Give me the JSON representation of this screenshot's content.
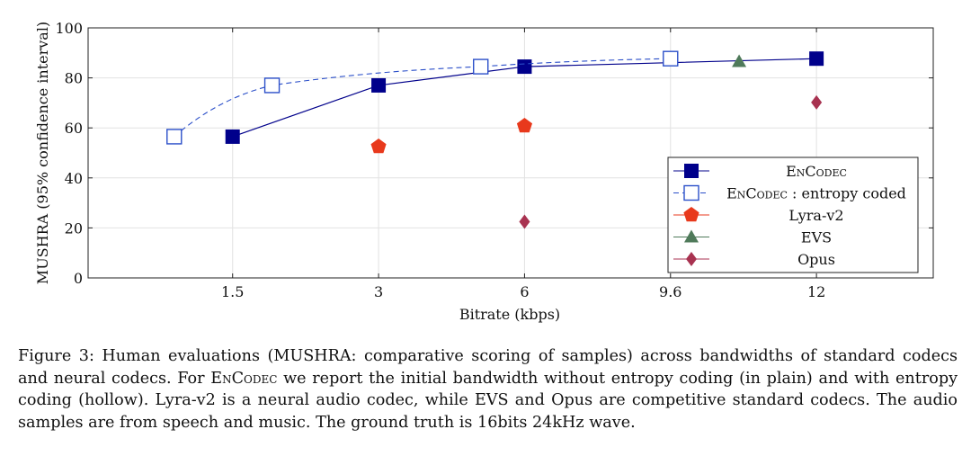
{
  "chart_data": {
    "type": "line",
    "xlabel": "Bitrate (kbps)",
    "ylabel": "MUSHRA (95% confidence interval)",
    "ylim": [
      0,
      100
    ],
    "y_ticks": [
      0,
      20,
      40,
      60,
      80,
      100
    ],
    "x_ticks": [
      {
        "pos": 1,
        "label": "1.5"
      },
      {
        "pos": 2,
        "label": "3"
      },
      {
        "pos": 3,
        "label": "6"
      },
      {
        "pos": 4,
        "label": "9.6"
      },
      {
        "pos": 5,
        "label": "12"
      }
    ],
    "xlim": [
      0.01,
      5.8
    ],
    "grid": true,
    "legend_position": "bottom-right",
    "series": [
      {
        "name": "EnCodec",
        "style": "solid-line-filled-square",
        "color": "#00008b",
        "points": [
          {
            "x": 1,
            "y": 56.5
          },
          {
            "x": 2,
            "y": 77
          },
          {
            "x": 3,
            "y": 84.5
          },
          {
            "x": 5,
            "y": 87.7
          }
        ]
      },
      {
        "name": "EnCodec : entropy coded",
        "style": "dashed-line-hollow-square",
        "color": "#2b4fc9",
        "points": [
          {
            "x": 0.6,
            "y": 56.5
          },
          {
            "x": 1.27,
            "y": 77
          },
          {
            "x": 2.7,
            "y": 84.5
          },
          {
            "x": 4.0,
            "y": 87.7
          }
        ]
      },
      {
        "name": "Lyra-v2",
        "style": "pentagon",
        "color": "#e8391c",
        "points": [
          {
            "x": 2,
            "y": 52.5
          },
          {
            "x": 3,
            "y": 60.8
          }
        ]
      },
      {
        "name": "EVS",
        "style": "triangle",
        "color": "#4f7a5a",
        "points": [
          {
            "x": 4.47,
            "y": 86.5
          }
        ]
      },
      {
        "name": "Opus",
        "style": "diamond",
        "color": "#a83250",
        "points": [
          {
            "x": 3,
            "y": 22.5
          },
          {
            "x": 5,
            "y": 70.2
          }
        ]
      }
    ]
  },
  "caption": {
    "line1": "Figure 3: Human evaluations (MUSHRA: comparative scoring of samples) across bandwidths of standard",
    "line2a": "codecs and neural codecs. For ",
    "line2b": "EnCodec",
    "line2c": "  we report the initial bandwidth without entropy coding (in plain)",
    "line3": "and with entropy coding (hollow). Lyra-v2 is a neural audio codec, while EVS and Opus are competitive",
    "line4": "standard codecs. The audio samples are from speech and music. The ground truth is 16bits 24kHz wave."
  }
}
